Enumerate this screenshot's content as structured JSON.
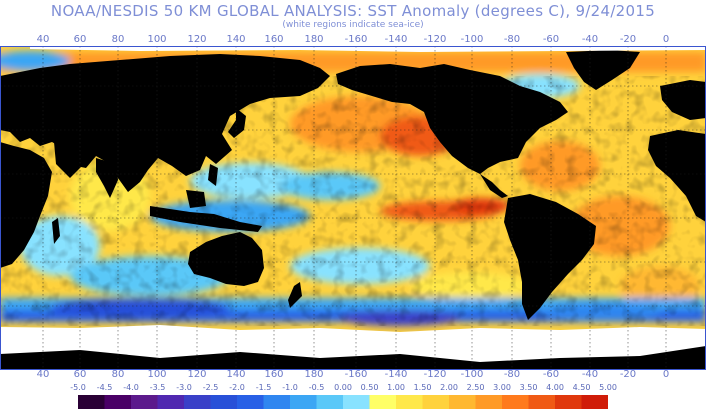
{
  "title": "NOAA/NESDIS 50 KM GLOBAL ANALYSIS: SST Anomaly (degrees C), 9/24/2015",
  "subtitle": "(white regions indicate sea-ice)",
  "longitude_labels": [
    "40",
    "60",
    "80",
    "100",
    "120",
    "140",
    "160",
    "180",
    "-160",
    "-140",
    "-120",
    "-100",
    "-80",
    "-60",
    "-40",
    "-20",
    "0"
  ],
  "legend": {
    "ticks": [
      "-5.0",
      "-4.5",
      "-4.0",
      "-3.5",
      "-3.0",
      "-2.5",
      "-2.0",
      "-1.5",
      "-1.0",
      "-0.5",
      "0.00",
      "0.50",
      "1.00",
      "1.50",
      "2.00",
      "2.50",
      "3.00",
      "3.50",
      "4.00",
      "4.50",
      "5.00"
    ],
    "colors": [
      "#2a0035",
      "#4a0066",
      "#5c1a8c",
      "#5028b0",
      "#3a40c8",
      "#2850d8",
      "#2860e6",
      "#2f86f0",
      "#3ba6f4",
      "#5ac8f8",
      "#88e2ff",
      "#ffff66",
      "#ffe84a",
      "#ffd23c",
      "#ffb830",
      "#ff9a26",
      "#ff7a1c",
      "#f05a14",
      "#e0380c",
      "#d01c08"
    ]
  },
  "colors": {
    "land": "#000000",
    "sea_ice": "#ffffff",
    "frame": "#3a55d0",
    "gridline": "#202020"
  }
}
